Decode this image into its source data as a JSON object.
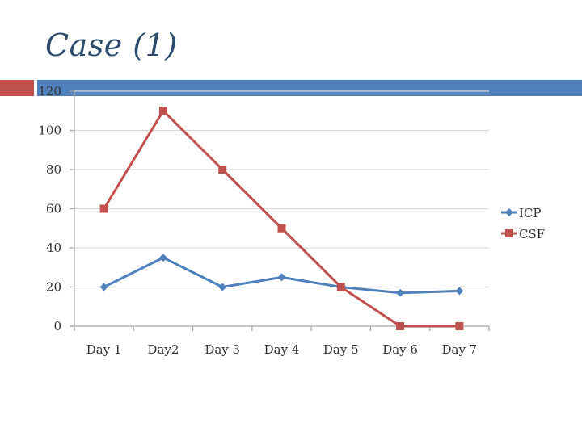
{
  "slide": {
    "title": "Case (1)"
  },
  "colors": {
    "title": "#2E4B6E",
    "accent_red": "#C0504D",
    "accent_blue": "#4F81BD",
    "icp": "#4F81BD",
    "csf": "#C0504D",
    "grid": "#D9D9D9",
    "axis": "#A6A6A6"
  },
  "chart_data": {
    "type": "line",
    "title": "",
    "xlabel": "",
    "ylabel": "",
    "categories": [
      "Day 1",
      "Day2",
      "Day 3",
      "Day 4",
      "Day 5",
      "Day 6",
      "Day 7"
    ],
    "series": [
      {
        "name": "ICP",
        "marker": "diamond",
        "values": [
          20,
          35,
          20,
          25,
          20,
          17,
          18
        ]
      },
      {
        "name": "CSF",
        "marker": "square",
        "values": [
          60,
          110,
          80,
          50,
          20,
          0,
          0
        ]
      }
    ],
    "ylim": [
      0,
      120
    ],
    "yticks": [
      0,
      20,
      40,
      60,
      80,
      100,
      120
    ],
    "grid": true,
    "legend": "right"
  }
}
